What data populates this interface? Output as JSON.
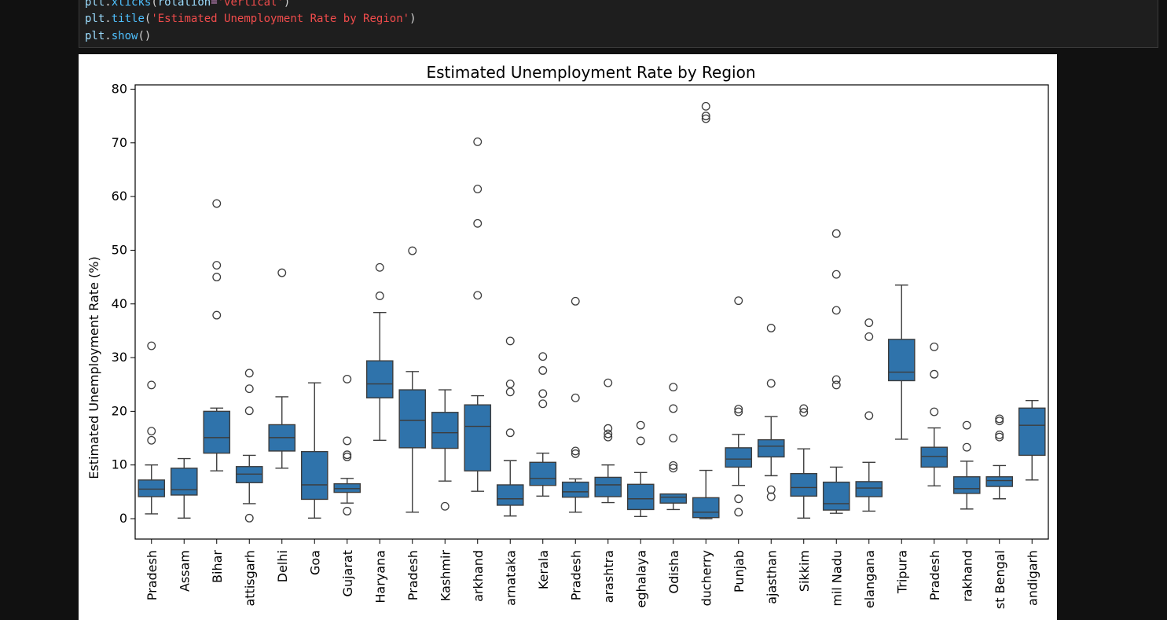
{
  "code": {
    "line1": {
      "obj": "plt",
      "fn": "xticks",
      "arg_name": "rotation",
      "arg_value": "'vertical'"
    },
    "line2": {
      "obj": "plt",
      "fn": "title",
      "arg": "'Estimated Unemployment Rate by Region'"
    },
    "line3": {
      "obj": "plt",
      "fn": "show"
    }
  },
  "chart_data": {
    "type": "box",
    "title": "Estimated Unemployment Rate by Region",
    "xlabel": "",
    "ylabel": "Estimated Unemployment Rate (%)",
    "ylim": [
      -3.8,
      80.8
    ],
    "yticks": [
      0,
      10,
      20,
      30,
      40,
      50,
      60,
      70,
      80
    ],
    "grid": false,
    "color": "#2f73ab",
    "edge_color": "#3d3d3d",
    "categories": [
      "Pradesh",
      "Assam",
      "Bihar",
      "attisgarh",
      "Delhi",
      "Goa",
      "Gujarat",
      "Haryana",
      "Pradesh",
      "Kashmir",
      "arkhand",
      "arnataka",
      "Kerala",
      "Pradesh",
      "arashtra",
      "eghalaya",
      "Odisha",
      "ducherry",
      "Punjab",
      "ajasthan",
      "Sikkim",
      "mil Nadu",
      "elangana",
      "Tripura",
      "Pradesh",
      "rakhand",
      "st Bengal",
      "andigarh"
    ],
    "boxes": [
      {
        "q1": 4.1,
        "median": 5.5,
        "q3": 7.2,
        "wlo": 0.9,
        "whi": 10.0,
        "fliers": [
          32.2,
          24.9,
          16.3,
          14.6
        ]
      },
      {
        "q1": 4.4,
        "median": 5.4,
        "q3": 9.4,
        "wlo": 0.1,
        "whi": 11.2,
        "fliers": []
      },
      {
        "q1": 12.2,
        "median": 15.1,
        "q3": 20.0,
        "wlo": 8.9,
        "whi": 20.6,
        "fliers": [
          58.7,
          47.2,
          45.0,
          37.9
        ]
      },
      {
        "q1": 6.7,
        "median": 8.3,
        "q3": 9.7,
        "wlo": 2.8,
        "whi": 11.8,
        "fliers": [
          27.1,
          24.2,
          20.1,
          0.1
        ]
      },
      {
        "q1": 12.6,
        "median": 15.1,
        "q3": 17.5,
        "wlo": 9.4,
        "whi": 22.7,
        "fliers": [
          45.8
        ]
      },
      {
        "q1": 3.6,
        "median": 6.3,
        "q3": 12.5,
        "wlo": 0.1,
        "whi": 25.3,
        "fliers": []
      },
      {
        "q1": 4.9,
        "median": 5.6,
        "q3": 6.5,
        "wlo": 2.9,
        "whi": 7.5,
        "fliers": [
          26.0,
          14.5,
          11.9,
          11.5,
          1.4
        ]
      },
      {
        "q1": 22.5,
        "median": 25.1,
        "q3": 29.4,
        "wlo": 14.6,
        "whi": 38.4,
        "fliers": [
          46.8,
          41.5
        ]
      },
      {
        "q1": 13.2,
        "median": 18.3,
        "q3": 24.0,
        "wlo": 1.2,
        "whi": 27.4,
        "fliers": [
          49.9
        ]
      },
      {
        "q1": 13.1,
        "median": 16.0,
        "q3": 19.8,
        "wlo": 7.0,
        "whi": 24.0,
        "fliers": [
          2.3
        ]
      },
      {
        "q1": 8.9,
        "median": 17.2,
        "q3": 21.2,
        "wlo": 5.1,
        "whi": 22.9,
        "fliers": [
          70.2,
          61.4,
          55.0,
          41.6
        ]
      },
      {
        "q1": 2.5,
        "median": 3.7,
        "q3": 6.3,
        "wlo": 0.5,
        "whi": 10.8,
        "fliers": [
          33.1,
          25.1,
          23.6,
          16.0
        ]
      },
      {
        "q1": 6.2,
        "median": 7.5,
        "q3": 10.5,
        "wlo": 4.2,
        "whi": 12.2,
        "fliers": [
          30.2,
          27.6,
          23.3,
          21.4
        ]
      },
      {
        "q1": 4.0,
        "median": 5.0,
        "q3": 6.8,
        "wlo": 1.2,
        "whi": 7.4,
        "fliers": [
          40.5,
          22.5,
          12.6,
          12.1
        ]
      },
      {
        "q1": 4.1,
        "median": 6.3,
        "q3": 7.7,
        "wlo": 3.0,
        "whi": 10.0,
        "fliers": [
          25.3,
          16.8,
          15.8,
          15.2
        ]
      },
      {
        "q1": 1.7,
        "median": 3.7,
        "q3": 6.4,
        "wlo": 0.4,
        "whi": 8.6,
        "fliers": [
          17.4,
          14.5
        ]
      },
      {
        "q1": 2.9,
        "median": 4.0,
        "q3": 4.6,
        "wlo": 1.7,
        "whi": 4.5,
        "fliers": [
          24.5,
          20.5,
          15.0,
          9.9,
          9.4
        ]
      },
      {
        "q1": 0.2,
        "median": 1.2,
        "q3": 3.9,
        "wlo": 0.0,
        "whi": 9.0,
        "fliers": [
          76.8,
          75.0,
          74.5
        ]
      },
      {
        "q1": 9.6,
        "median": 11.1,
        "q3": 13.2,
        "wlo": 6.2,
        "whi": 15.7,
        "fliers": [
          40.6,
          20.4,
          19.9,
          3.7,
          1.2
        ]
      },
      {
        "q1": 11.5,
        "median": 13.5,
        "q3": 14.7,
        "wlo": 8.0,
        "whi": 19.0,
        "fliers": [
          35.5,
          25.2,
          5.4,
          4.1
        ]
      },
      {
        "q1": 4.2,
        "median": 5.8,
        "q3": 8.4,
        "wlo": 0.1,
        "whi": 13.0,
        "fliers": [
          20.5,
          19.8
        ]
      },
      {
        "q1": 1.6,
        "median": 2.8,
        "q3": 6.8,
        "wlo": 1.0,
        "whi": 9.6,
        "fliers": [
          53.1,
          45.5,
          38.8,
          25.9,
          24.9
        ]
      },
      {
        "q1": 4.1,
        "median": 5.7,
        "q3": 6.9,
        "wlo": 1.4,
        "whi": 10.5,
        "fliers": [
          36.5,
          33.9,
          19.2
        ]
      },
      {
        "q1": 25.7,
        "median": 27.3,
        "q3": 33.4,
        "wlo": 14.8,
        "whi": 43.5,
        "fliers": []
      },
      {
        "q1": 9.6,
        "median": 11.6,
        "q3": 13.3,
        "wlo": 6.1,
        "whi": 16.9,
        "fliers": [
          32.0,
          26.9,
          19.9
        ]
      },
      {
        "q1": 4.7,
        "median": 5.6,
        "q3": 7.8,
        "wlo": 1.8,
        "whi": 10.7,
        "fliers": [
          17.4,
          13.3
        ]
      },
      {
        "q1": 6.0,
        "median": 7.1,
        "q3": 7.8,
        "wlo": 3.7,
        "whi": 9.9,
        "fliers": [
          18.6,
          18.2,
          15.6,
          15.2
        ]
      },
      {
        "q1": 11.8,
        "median": 17.4,
        "q3": 20.6,
        "wlo": 7.2,
        "whi": 22.0,
        "fliers": []
      }
    ]
  }
}
